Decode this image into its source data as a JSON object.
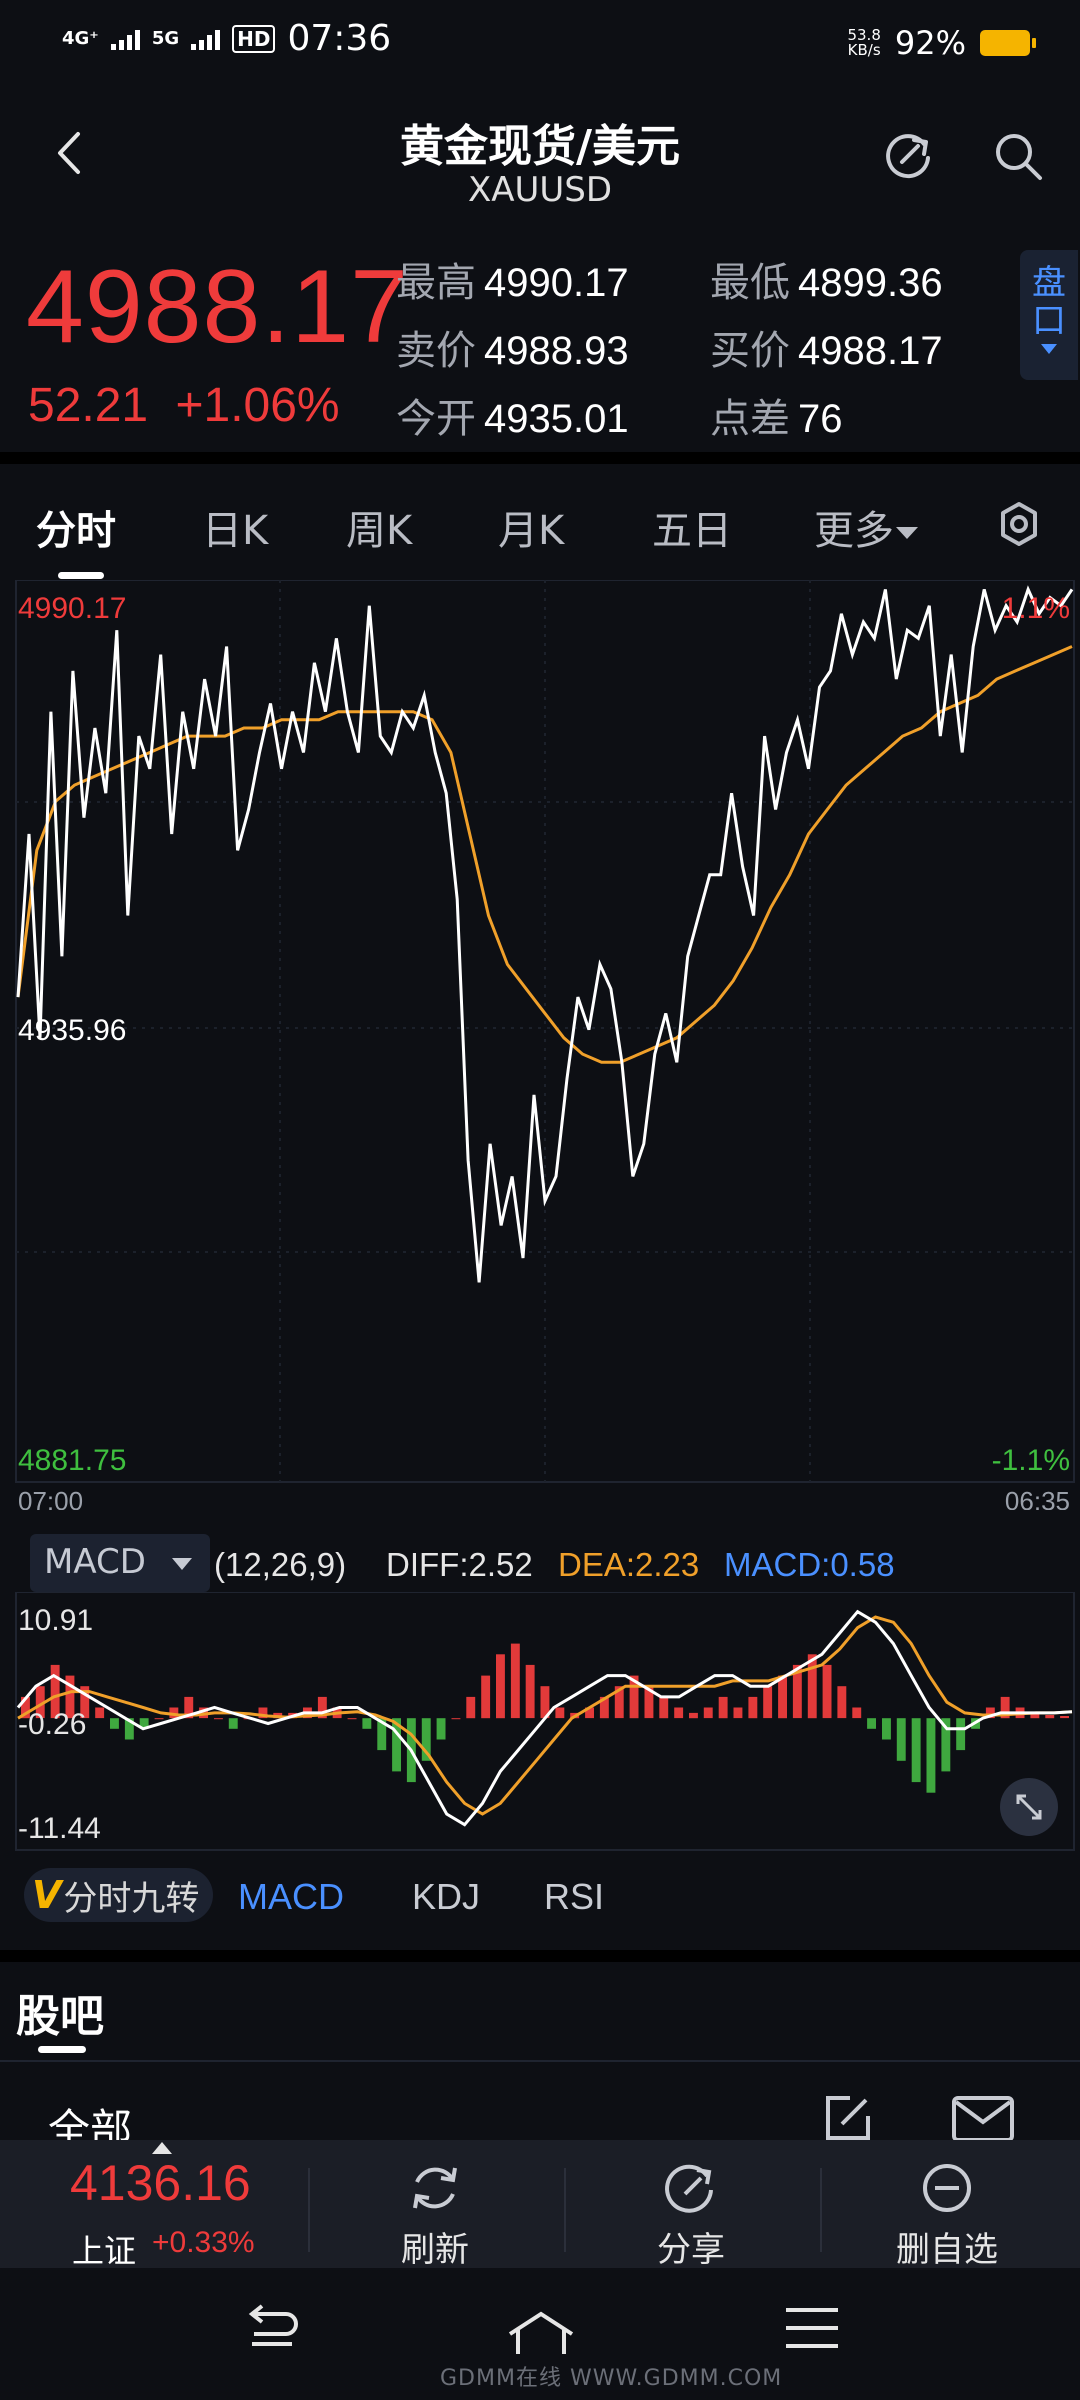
{
  "status_bar": {
    "network1": "4G⁺",
    "network2": "5G",
    "hd": "HD",
    "time": "07:36",
    "speed_value": "53.8",
    "speed_unit": "KB/s",
    "battery": "92%"
  },
  "header": {
    "title": "黄金现货/美元",
    "subtitle": "XAUUSD"
  },
  "quote": {
    "price": "4988.17",
    "change": "52.21",
    "change_pct": "+1.06%",
    "high_label": "最高",
    "high": "4990.17",
    "low_label": "最低",
    "low": "4899.36",
    "sell_label": "卖价",
    "sell": "4988.93",
    "buy_label": "买价",
    "buy": "4988.17",
    "open_label": "今开",
    "open": "4935.01",
    "spread_label": "点差",
    "spread": "76",
    "pankou_label": "盘口"
  },
  "tabs": [
    "分时",
    "日K",
    "周K",
    "月K",
    "五日",
    "更多"
  ],
  "chart_data": {
    "type": "line",
    "y_top": "4990.17",
    "y_mid": "4935.96",
    "y_bottom": "4881.75",
    "pct_top": "1.1%",
    "pct_bottom": "-1.1%",
    "x_start": "07:00",
    "x_end": "06:35",
    "ylim": [
      4881.75,
      4990.17
    ],
    "series": [
      {
        "color": "#ffffff",
        "values": [
          4940,
          4960,
          4935,
          4975,
          4945,
          4980,
          4962,
          4973,
          4965,
          4985,
          4950,
          4972,
          4968,
          4982,
          4960,
          4975,
          4968,
          4979,
          4972,
          4983,
          4958,
          4963,
          4970,
          4976,
          4968,
          4975,
          4970,
          4981,
          4975,
          4984,
          4975,
          4970,
          4988,
          4972,
          4970,
          4975,
          4973,
          4977,
          4970,
          4965,
          4952,
          4920,
          4905,
          4922,
          4912,
          4918,
          4908,
          4928,
          4915,
          4918,
          4930,
          4940,
          4936,
          4944,
          4941,
          4932,
          4918,
          4922,
          4933,
          4938,
          4932,
          4945,
          4950,
          4955,
          4955,
          4965,
          4956,
          4950,
          4972,
          4963,
          4970,
          4974,
          4968,
          4978,
          4980,
          4987,
          4982,
          4986,
          4984,
          4990,
          4979,
          4985,
          4984,
          4988,
          4972,
          4982,
          4970,
          4983,
          4990,
          4985,
          4988,
          4986,
          4990,
          4987,
          4989,
          4988,
          4990
        ]
      },
      {
        "color": "#f0a02a",
        "values": [
          4940,
          4958,
          4964,
          4966,
          4967,
          4968,
          4969,
          4970,
          4971,
          4972,
          4972,
          4972,
          4973,
          4973,
          4974,
          4974,
          4974,
          4975,
          4975,
          4975,
          4975,
          4975,
          4974,
          4970,
          4960,
          4950,
          4944,
          4941,
          4938,
          4935,
          4933,
          4932,
          4932,
          4933,
          4934,
          4935,
          4937,
          4939,
          4942,
          4946,
          4951,
          4955,
          4960,
          4963,
          4966,
          4968,
          4970,
          4972,
          4973,
          4975,
          4976,
          4977,
          4979,
          4980,
          4981,
          4982,
          4983
        ]
      }
    ]
  },
  "macd": {
    "selector": "MACD",
    "params": "(12,26,9)",
    "diff": "DIFF:2.52",
    "dea": "DEA:2.23",
    "macd": "MACD:0.58",
    "y_top": "10.91",
    "y_mid": "-0.26",
    "y_bottom": "-11.44",
    "ylim": [
      -11.44,
      10.91
    ],
    "colors": {
      "diff": "#ffffff",
      "dea": "#f0a02a",
      "macd": "#4a90ff",
      "up": "#e23a3a",
      "down": "#3fa83f"
    },
    "histogram": [
      2,
      3,
      5,
      4,
      3,
      1,
      -1,
      -2,
      -1,
      0,
      1,
      2,
      1,
      0,
      -1,
      0,
      1,
      0.5,
      0.5,
      1,
      2,
      1,
      0,
      -1,
      -3,
      -5,
      -6,
      -4,
      -2,
      0,
      2,
      4,
      6,
      7,
      5,
      3,
      1,
      0.5,
      1,
      2,
      3,
      4,
      3,
      2,
      1,
      0.5,
      1,
      2,
      1,
      2,
      3,
      4,
      5,
      6,
      5,
      3,
      1,
      -1,
      -2,
      -4,
      -6,
      -7,
      -5,
      -3,
      -1,
      1,
      2,
      1,
      0.5,
      0.3,
      0.2
    ],
    "diff_values": [
      1,
      3,
      4,
      3,
      2,
      1,
      0,
      -1,
      -0.5,
      0,
      0.5,
      1,
      0.5,
      0,
      -0.5,
      0,
      0.5,
      0.5,
      1,
      1,
      0,
      -1,
      -3,
      -6,
      -9,
      -10,
      -8,
      -5,
      -3,
      -1,
      1,
      2,
      3,
      4,
      4,
      3,
      2,
      2,
      3,
      4,
      4,
      3,
      3,
      4,
      5,
      6,
      8,
      10,
      9,
      7,
      4,
      1,
      -1,
      -1,
      0,
      0.5,
      0.5,
      0.5,
      0.5,
      0.6
    ],
    "dea_values": [
      0,
      1,
      2,
      2.5,
      2.5,
      2,
      1.5,
      1,
      0.5,
      0.3,
      0.3,
      0.5,
      0.5,
      0.4,
      0.2,
      0.1,
      0.2,
      0.3,
      0.5,
      0.6,
      0.3,
      -0.3,
      -1.5,
      -3.5,
      -6,
      -8,
      -9,
      -8,
      -6,
      -4,
      -2,
      0,
      1,
      2,
      3,
      3,
      3,
      3,
      3,
      3,
      3.5,
      3.5,
      3.5,
      4,
      4.5,
      5,
      6.5,
      8.5,
      9.5,
      9,
      7,
      4,
      1.5,
      0.5,
      0.3,
      0.3,
      0.4,
      0.5,
      0.5,
      0.6
    ]
  },
  "indicators": {
    "jiuzhuan_v": "V",
    "jiuzhuan": "分时九转",
    "items": [
      "MACD",
      "KDJ",
      "RSI"
    ]
  },
  "guba": {
    "title": "股吧",
    "all": "全部"
  },
  "bottom": {
    "index_value": "4136.16",
    "index_name": "上证",
    "index_pct": "+0.33%",
    "refresh": "刷新",
    "share": "分享",
    "remove": "删自选"
  },
  "watermark": "GDMM在线 WWW.GDMM.COM"
}
